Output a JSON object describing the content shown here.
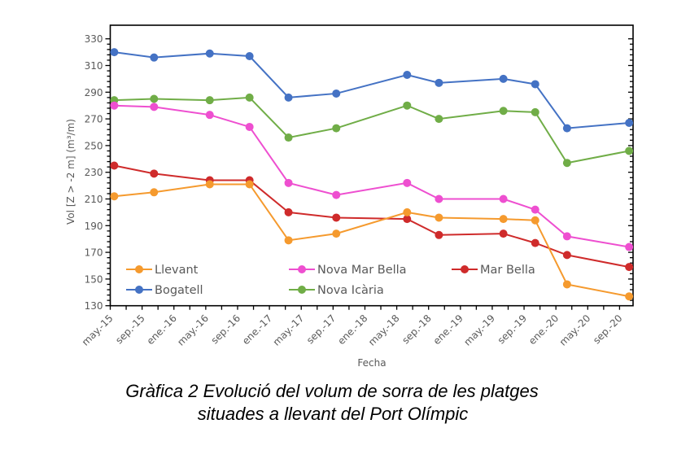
{
  "chart_data": {
    "type": "line",
    "title": "",
    "xlabel": "Fecha",
    "ylabel": "Vol [Z > -2 m] (m³/m)",
    "ylim": [
      130,
      330
    ],
    "yticks": [
      130,
      150,
      170,
      190,
      210,
      230,
      250,
      270,
      290,
      310,
      330
    ],
    "x_unit": "months since may.-15",
    "xlim": [
      0,
      66
    ],
    "xticks": [
      {
        "x": 0,
        "label": "may.-15"
      },
      {
        "x": 4,
        "label": "sep.-15"
      },
      {
        "x": 8,
        "label": "ene.-16"
      },
      {
        "x": 12,
        "label": "may.-16"
      },
      {
        "x": 16,
        "label": "sep.-16"
      },
      {
        "x": 20,
        "label": "ene.-17"
      },
      {
        "x": 24,
        "label": "may.-17"
      },
      {
        "x": 28,
        "label": "sep.-17"
      },
      {
        "x": 32,
        "label": "ene.-18"
      },
      {
        "x": 36,
        "label": "may.-18"
      },
      {
        "x": 40,
        "label": "sep.-18"
      },
      {
        "x": 44,
        "label": "ene.-19"
      },
      {
        "x": 48,
        "label": "may.-19"
      },
      {
        "x": 52,
        "label": "sep.-19"
      },
      {
        "x": 56,
        "label": "ene.-20"
      },
      {
        "x": 60,
        "label": "may.-20"
      },
      {
        "x": 64,
        "label": "sep.-20"
      }
    ],
    "x": [
      0.5,
      5.5,
      12.5,
      17.5,
      22.4,
      28.4,
      37.3,
      41.3,
      49.4,
      53.4,
      57.4,
      65.2
    ],
    "series": [
      {
        "name": "Llevant",
        "color": "#F59A2E",
        "values": [
          212,
          215,
          221,
          221,
          179,
          184,
          200,
          196,
          195,
          194,
          146,
          137
        ]
      },
      {
        "name": "Nova Mar Bella",
        "color": "#EE4FD0",
        "values": [
          280,
          279,
          273,
          264,
          222,
          213,
          222,
          210,
          210,
          202,
          182,
          174
        ]
      },
      {
        "name": "Mar Bella",
        "color": "#CF2B2B",
        "values": [
          235,
          229,
          224,
          224,
          200,
          196,
          195,
          183,
          184,
          177,
          168,
          159
        ]
      },
      {
        "name": "Bogatell",
        "color": "#4472C4",
        "values": [
          320,
          316,
          319,
          317,
          286,
          289,
          303,
          297,
          300,
          296,
          263,
          267
        ]
      },
      {
        "name": "Nova Icària",
        "color": "#70AD47",
        "values": [
          284,
          285,
          284,
          286,
          256,
          263,
          280,
          270,
          276,
          275,
          237,
          246
        ]
      }
    ],
    "legend": {
      "placement": "bottom-inside",
      "columns": 3
    },
    "grid": false
  },
  "caption": {
    "line1": "Gràfica  2 Evolució del volum de sorra de les platges",
    "line2": "situades a llevant del Port Olímpic"
  }
}
